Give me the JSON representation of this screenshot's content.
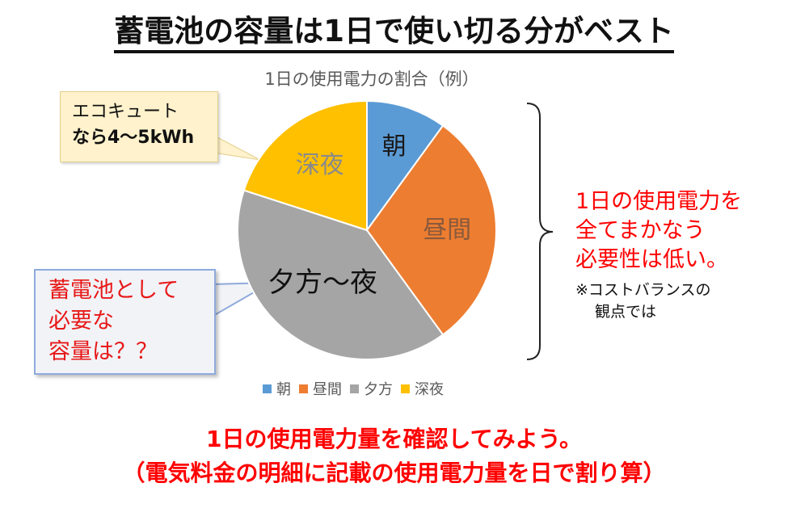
{
  "page": {
    "title": "蓄電池の容量は1日で使い切る分がベスト"
  },
  "callouts": {
    "yellow_line1": "エコキュート",
    "yellow_line2": "なら4～5kWh",
    "blue_line1": "蓄電池として",
    "blue_line2": "必要な",
    "blue_line3": "容量は？？"
  },
  "right_note": {
    "line1": "1日の使用電力を",
    "line2": "全てまかなう",
    "line3": "必要性は低い。",
    "sub1": "※コストバランスの",
    "sub2": "観点では"
  },
  "bottom": {
    "line1": "1日の使用電力量を確認してみよう。",
    "line2": "（電気料金の明細に記載の使用電力量を日で割り算）"
  },
  "chart_data": {
    "type": "pie",
    "title": "1日の使用電力の割合（例）",
    "categories": [
      "朝",
      "昼間",
      "夕方",
      "深夜"
    ],
    "slice_labels": [
      "朝",
      "昼間",
      "夕方～夜",
      "深夜"
    ],
    "values": [
      10,
      30,
      40,
      20
    ],
    "colors": [
      "#5b9bd5",
      "#ed7d31",
      "#a5a5a5",
      "#ffc000"
    ],
    "label_colors": [
      "#1a1a1a",
      "#8a5a3c",
      "#111111",
      "#8a8a8a"
    ],
    "legend_placement": "bottom"
  }
}
